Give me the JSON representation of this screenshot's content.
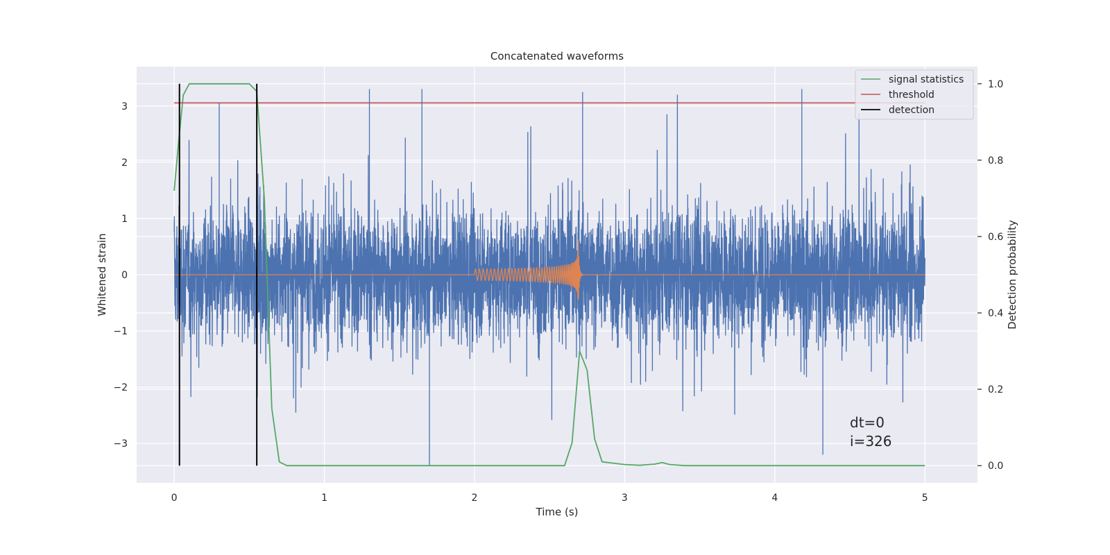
{
  "chart_data": {
    "type": "line",
    "title": "Concatenated waveforms",
    "xlabel": "Time (s)",
    "ylabel": "Whitened strain",
    "y2label": "Detection probability",
    "xlim": [
      -0.25,
      5.35
    ],
    "ylim": [
      -3.7,
      3.7
    ],
    "y2lim": [
      -0.045,
      1.045
    ],
    "xticks": [
      0,
      1,
      2,
      3,
      4,
      5
    ],
    "yticks": [
      -3,
      -2,
      -1,
      0,
      1,
      2,
      3
    ],
    "y2ticks": [
      0.0,
      0.2,
      0.4,
      0.6,
      0.8,
      1.0
    ],
    "grid": true,
    "legend_position": "top-right",
    "legend": [
      "signal statistics",
      "threshold",
      "detection"
    ],
    "annotation": [
      "dt=0",
      "i=326"
    ],
    "series": [
      {
        "color": "#4c72b0",
        "axis": "left",
        "description": "whitened strain noise, sampled densely over 0–5 s",
        "t_start": 0,
        "t_end": 5,
        "sigma": 0.85,
        "peaks": [
          [
            0.3,
            3.05
          ],
          [
            1.3,
            3.3
          ],
          [
            1.65,
            3.3
          ],
          [
            1.7,
            -3.4
          ],
          [
            2.72,
            3.25
          ],
          [
            4.18,
            3.3
          ],
          [
            4.32,
            -3.2
          ]
        ]
      },
      {
        "color": "#dd8452",
        "axis": "left",
        "description": "injected chirp waveform",
        "t_start": 2.0,
        "t_merger": 2.69,
        "peak_amplitude": 0.75
      },
      {
        "name": "signal statistics",
        "color": "#55a868",
        "axis": "right",
        "x": [
          0,
          0.03,
          0.06,
          0.1,
          0.5,
          0.55,
          0.6,
          0.65,
          0.7,
          0.75,
          2.5,
          2.6,
          2.65,
          2.7,
          2.75,
          2.8,
          2.85,
          3.0,
          3.1,
          3.2,
          3.25,
          3.3,
          3.4,
          5.0
        ],
        "values": [
          0.72,
          0.85,
          0.97,
          1.0,
          1.0,
          0.98,
          0.7,
          0.15,
          0.01,
          0.0,
          0.0,
          0.0,
          0.06,
          0.3,
          0.25,
          0.07,
          0.01,
          0.003,
          0.001,
          0.004,
          0.008,
          0.003,
          0.0,
          0.0
        ]
      },
      {
        "name": "threshold",
        "color": "#c44e52",
        "axis": "right",
        "x": [
          0,
          5
        ],
        "values": [
          0.95,
          0.95
        ]
      },
      {
        "name": "detection",
        "color": "#000000",
        "axis": "right",
        "vlines": [
          0.035,
          0.55
        ],
        "range": [
          0,
          1
        ]
      }
    ]
  }
}
